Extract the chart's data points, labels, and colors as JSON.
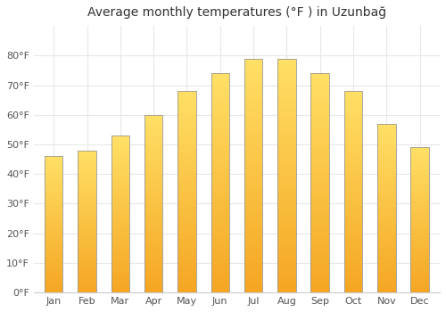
{
  "title": "Average monthly temperatures (°F ) in Uzunbağ",
  "months": [
    "Jan",
    "Feb",
    "Mar",
    "Apr",
    "May",
    "Jun",
    "Jul",
    "Aug",
    "Sep",
    "Oct",
    "Nov",
    "Dec"
  ],
  "values": [
    46,
    48,
    53,
    60,
    68,
    74,
    79,
    79,
    74,
    68,
    57,
    49
  ],
  "bar_color_light": "#FFD966",
  "bar_color_dark": "#F5A623",
  "bar_edge_color": "#999999",
  "ylim": [
    0,
    90
  ],
  "yticks": [
    0,
    10,
    20,
    30,
    40,
    50,
    60,
    70,
    80
  ],
  "ytick_labels": [
    "0°F",
    "10°F",
    "20°F",
    "30°F",
    "40°F",
    "50°F",
    "60°F",
    "70°F",
    "80°F"
  ],
  "title_fontsize": 10,
  "tick_fontsize": 8,
  "background_color": "#ffffff",
  "grid_color": "#e8e8e8",
  "bar_width": 0.55,
  "figsize": [
    5.0,
    3.5
  ],
  "dpi": 100
}
